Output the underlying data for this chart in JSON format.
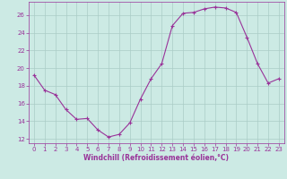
{
  "x_values": [
    0,
    1,
    2,
    3,
    4,
    5,
    6,
    7,
    8,
    9,
    10,
    11,
    12,
    13,
    14,
    15,
    16,
    17,
    18,
    19,
    20,
    21,
    22,
    23
  ],
  "y_values": [
    19.2,
    17.5,
    17.0,
    15.3,
    14.2,
    14.3,
    13.0,
    12.2,
    12.5,
    13.8,
    16.5,
    18.8,
    20.5,
    24.8,
    26.2,
    26.3,
    26.7,
    26.9,
    26.8,
    26.3,
    23.5,
    20.5,
    18.3,
    18.8
  ],
  "line_color": "#993399",
  "marker": "+",
  "marker_size": 3,
  "marker_linewidth": 0.8,
  "line_width": 0.8,
  "bg_color": "#cceae4",
  "grid_color": "#aaccc6",
  "xlabel": "Windchill (Refroidissement éolien,°C)",
  "ylabel": "",
  "xlim": [
    -0.5,
    23.5
  ],
  "ylim": [
    11.5,
    27.5
  ],
  "yticks": [
    12,
    14,
    16,
    18,
    20,
    22,
    24,
    26
  ],
  "xticks": [
    0,
    1,
    2,
    3,
    4,
    5,
    6,
    7,
    8,
    9,
    10,
    11,
    12,
    13,
    14,
    15,
    16,
    17,
    18,
    19,
    20,
    21,
    22,
    23
  ],
  "axis_color": "#993399",
  "tick_color": "#993399",
  "label_color": "#993399",
  "xlabel_fontsize": 5.5,
  "tick_fontsize": 5.0
}
